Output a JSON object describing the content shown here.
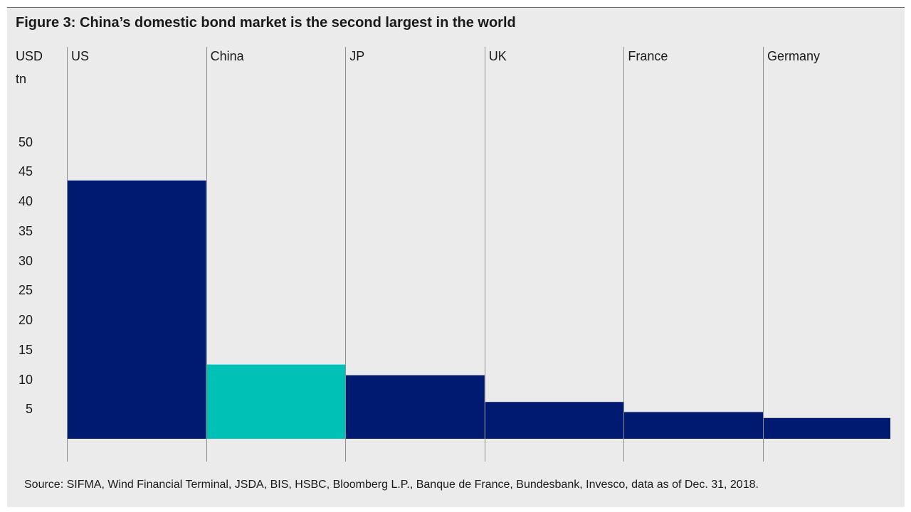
{
  "chart_data": {
    "type": "bar",
    "title": "Figure 3: China’s domestic bond market is the second largest in the world",
    "ylabel_lines": [
      "USD",
      "tn"
    ],
    "categories": [
      "US",
      "China",
      "JP",
      "UK",
      "France",
      "Germany"
    ],
    "values": [
      43.5,
      12.5,
      10.7,
      6.2,
      4.5,
      3.5
    ],
    "yticks": [
      5,
      10,
      15,
      20,
      25,
      30,
      35,
      40,
      45,
      50
    ],
    "ylim": [
      0,
      50
    ],
    "colors": [
      "#001a72",
      "#00c1b5",
      "#001a72",
      "#001a72",
      "#001a72",
      "#001a72"
    ],
    "source": "Source: SIFMA, Wind Financial Terminal, JSDA, BIS, HSBC, Bloomberg L.P., Banque de France, Bundesbank, Invesco, data as of Dec. 31, 2018."
  },
  "colors": {
    "background": "#ebebeb",
    "gridline": "#8c8c8c",
    "dark_navy": "#001a72",
    "teal": "#00c1b5"
  }
}
